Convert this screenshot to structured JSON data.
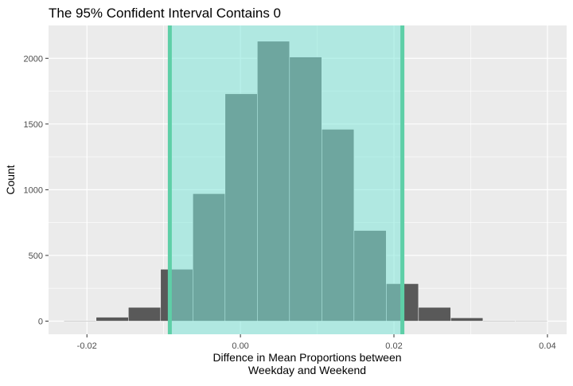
{
  "chart_data": {
    "type": "histogram",
    "title": "The 95% Confident Interval Contains 0",
    "xlabel_lines": [
      "Diffence in Mean Proportions between",
      "Weekday and Weekend"
    ],
    "ylabel": "Count",
    "xlim": [
      -0.025,
      0.0425
    ],
    "ylim": [
      -100,
      2250
    ],
    "x_ticks": [
      -0.02,
      0.0,
      0.02,
      0.04
    ],
    "x_tick_labels": [
      "-0.02",
      "0.00",
      "0.02",
      "0.04"
    ],
    "y_ticks": [
      0,
      500,
      1000,
      1500,
      2000
    ],
    "y_tick_labels": [
      "0",
      "500",
      "1000",
      "1500",
      "2000"
    ],
    "bin_edges": [
      -0.023,
      -0.0188,
      -0.0146,
      -0.0104,
      -0.0062,
      -0.002,
      0.0022,
      0.0064,
      0.0106,
      0.0148,
      0.019,
      0.0232,
      0.0274,
      0.0316,
      0.0358,
      0.04
    ],
    "counts": [
      3,
      30,
      105,
      395,
      970,
      1730,
      2130,
      2010,
      1460,
      690,
      285,
      105,
      25,
      3,
      2
    ],
    "confidence_interval": [
      -0.0092,
      0.0211
    ],
    "bar_color": "#595959",
    "ci_fill_color": "#7fe5d8",
    "ci_line_color": "#5ecfa7",
    "panel_background": "#ebebeb",
    "grid": true
  }
}
